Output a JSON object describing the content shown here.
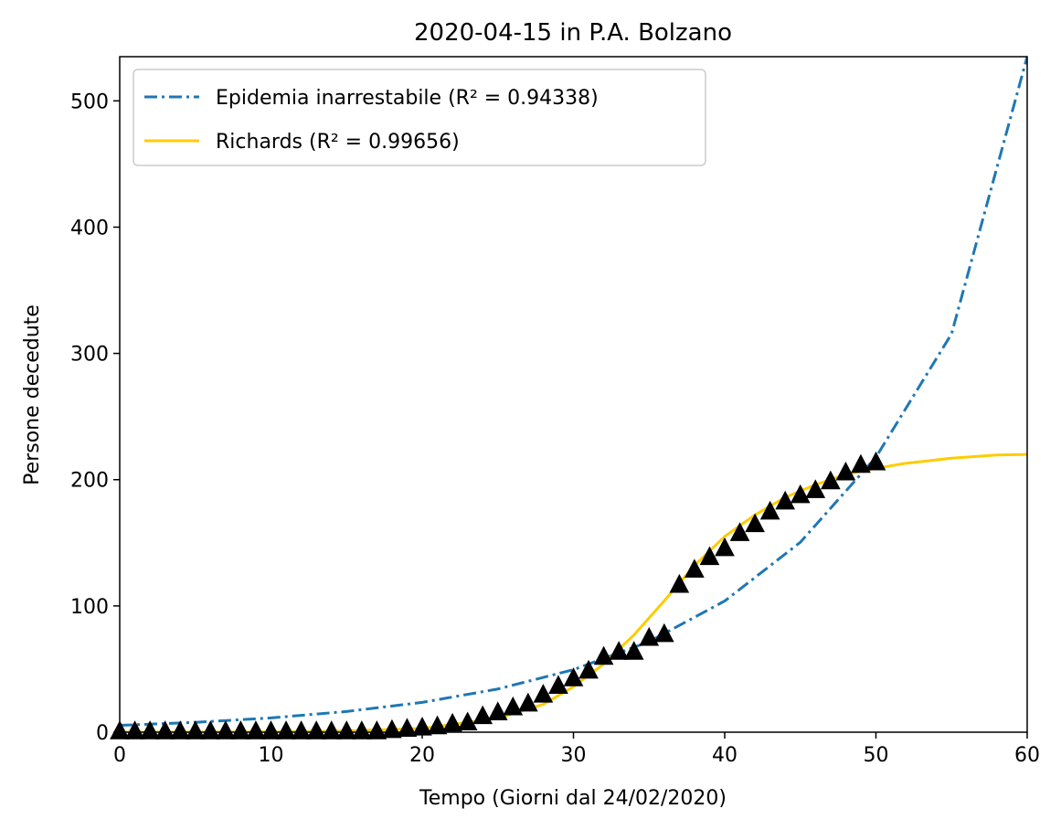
{
  "chart_data": {
    "type": "line",
    "title": "2020-04-15 in P.A. Bolzano",
    "xlabel": "Tempo (Giorni dal 24/02/2020)",
    "ylabel": "Persone decedute",
    "xlim": [
      0,
      60
    ],
    "ylim": [
      0,
      535
    ],
    "xticks": [
      0,
      10,
      20,
      30,
      40,
      50,
      60
    ],
    "yticks": [
      0,
      100,
      200,
      300,
      400,
      500
    ],
    "grid": false,
    "legend_position": "top-left",
    "series": [
      {
        "name": "Epidemia inarrestabile",
        "r2_label": "(R² = 0.94338)",
        "style": "dashdot",
        "color": "#1f77b4",
        "x": [
          0,
          5,
          10,
          15,
          20,
          25,
          30,
          35,
          40,
          45,
          50,
          55,
          60
        ],
        "y": [
          5.4,
          7.8,
          11.3,
          16.4,
          23.6,
          34.2,
          49.5,
          71.7,
          103.9,
          150.4,
          217.8,
          315.5,
          535
        ]
      },
      {
        "name": "Richards",
        "r2_label": "(R² = 0.99656)",
        "style": "solid",
        "color": "#ffcc00",
        "x": [
          0,
          10,
          15,
          20,
          25,
          28,
          30,
          32,
          34,
          36,
          38,
          40,
          42,
          44,
          46,
          48,
          50,
          52,
          55,
          58,
          60
        ],
        "y": [
          0,
          0.2,
          1,
          3,
          11,
          22,
          36,
          54,
          77,
          104,
          132,
          155,
          172,
          186,
          196,
          204,
          209,
          213,
          217,
          219.5,
          220
        ]
      },
      {
        "name": "",
        "style": "markers",
        "marker": "triangle",
        "color": "#000000",
        "x": [
          0,
          1,
          2,
          3,
          4,
          5,
          6,
          7,
          8,
          9,
          10,
          11,
          12,
          13,
          14,
          15,
          16,
          17,
          18,
          19,
          20,
          21,
          22,
          23,
          24,
          25,
          26,
          27,
          28,
          29,
          30,
          31,
          32,
          33,
          34,
          35,
          36,
          37,
          38,
          39,
          40,
          41,
          42,
          43,
          44,
          45,
          46,
          47,
          48,
          49,
          50
        ],
        "y": [
          0,
          0,
          0,
          0,
          0,
          0,
          0,
          0,
          0,
          0,
          0,
          0,
          0,
          0,
          0,
          0,
          0,
          0,
          1,
          2,
          3,
          4,
          6,
          7,
          12,
          15,
          19,
          22,
          29,
          36,
          42,
          48,
          59,
          63,
          63,
          74,
          77,
          116,
          128,
          138,
          145,
          157,
          164,
          174,
          182,
          187,
          191,
          198,
          205,
          211,
          213
        ]
      }
    ]
  }
}
